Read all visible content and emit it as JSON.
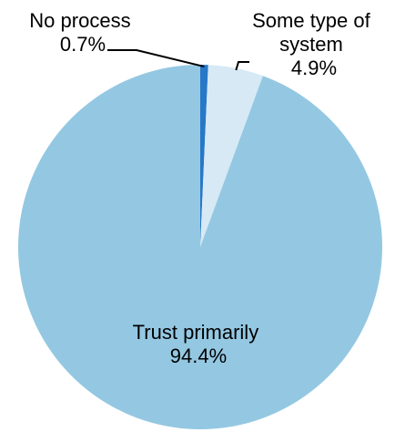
{
  "chart_data": {
    "type": "pie",
    "title": "",
    "start_angle_deg": 0,
    "direction": "clockwise",
    "slices": [
      {
        "name": "No process",
        "value": 0.7,
        "value_label": "0.7%",
        "label_lines": [
          "No process",
          "0.7%"
        ],
        "color": "#2878c8"
      },
      {
        "name": "Some type of system",
        "value": 4.9,
        "value_label": "4.9%",
        "label_lines": [
          "Some type of",
          "system",
          "4.9%"
        ],
        "color": "#d6e9f5"
      },
      {
        "name": "Trust primarily",
        "value": 94.4,
        "value_label": "94.4%",
        "label_lines": [
          "Trust primarily",
          "94.4%"
        ],
        "color": "#94c8e2"
      }
    ],
    "legend": "none",
    "labels": "callouts"
  }
}
